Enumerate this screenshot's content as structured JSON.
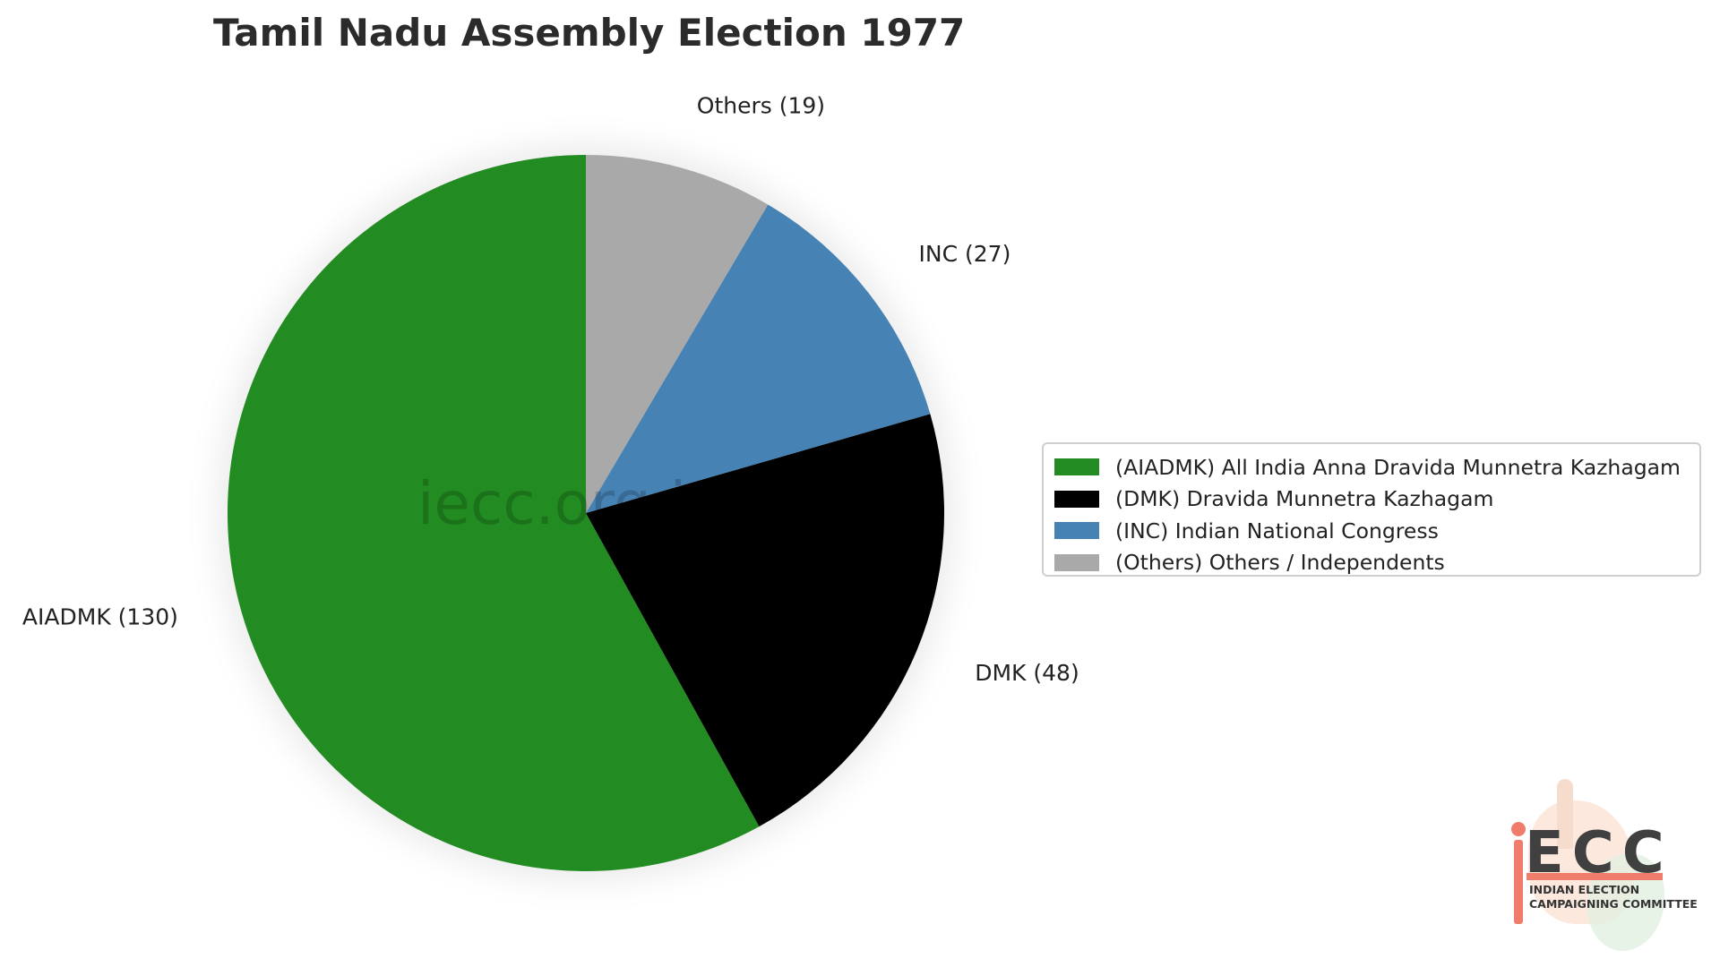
{
  "chart_data": {
    "type": "pie",
    "title": "Tamil Nadu Assembly Election 1977",
    "slices": [
      {
        "key": "AIADMK",
        "label": "AIADMK (130)",
        "value": 130,
        "color": "#228B22",
        "legend": "(AIADMK) All India Anna Dravida Munnetra Kazhagam"
      },
      {
        "key": "DMK",
        "label": "DMK (48)",
        "value": 48,
        "color": "#000000",
        "legend": "(DMK) Dravida Munnetra Kazhagam"
      },
      {
        "key": "INC",
        "label": "INC (27)",
        "value": 27,
        "color": "#4682B4",
        "legend": "(INC) Indian National Congress"
      },
      {
        "key": "Others",
        "label": "Others (19)",
        "value": 19,
        "color": "#A9A9A9",
        "legend": "(Others) Others / Independents"
      }
    ],
    "start": "top",
    "direction": "counterclockwise",
    "legend_position": "right"
  },
  "watermark": "iecc.org.in",
  "logo": {
    "letters": "ECC",
    "line1": "INDIAN ELECTION",
    "line2": "CAMPAIGNING COMMITTEE",
    "accent_color": "#F07C6C"
  }
}
